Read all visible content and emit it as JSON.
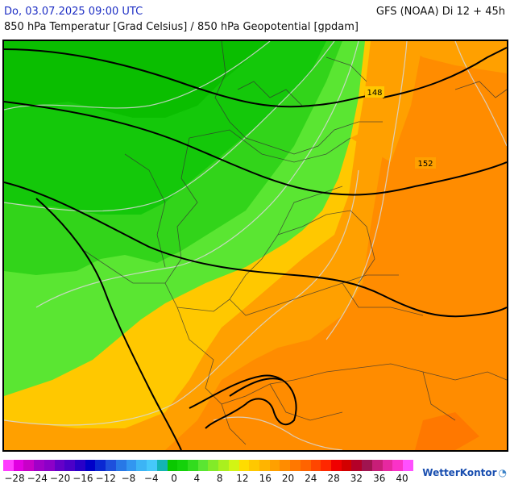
{
  "header": {
    "date": "Do, 03.07.2025 09:00 UTC",
    "model": "GFS (NOAA) Di 12 + 45h",
    "parameter": "850 hPa Temperatur [Grad Celsius] / 850 hPa Geopotential [gpdam]"
  },
  "map": {
    "contour_labels": [
      "148",
      "152"
    ]
  },
  "legend": {
    "colors": [
      "#ff3cff",
      "#e100e1",
      "#c800c8",
      "#a000c8",
      "#8c00c8",
      "#6400c8",
      "#4b00c8",
      "#2800c8",
      "#0000c8",
      "#0a28d2",
      "#1e50dc",
      "#2878e6",
      "#3296f0",
      "#3cb4f5",
      "#46c8fa",
      "#14b4b4",
      "#0ac800",
      "#14d20a",
      "#32dc1e",
      "#5ae632",
      "#82eb28",
      "#aaf01e",
      "#d2f514",
      "#ffdc00",
      "#ffc800",
      "#ffb400",
      "#ffa000",
      "#ff8c00",
      "#ff7800",
      "#ff6400",
      "#ff4600",
      "#ff2800",
      "#f00000",
      "#d20000",
      "#b40028",
      "#a01450",
      "#c81e78",
      "#e628a0",
      "#fa32c8",
      "#ff50ff"
    ],
    "labels": [
      "−28",
      "−24",
      "−20",
      "−16",
      "−12",
      "−8",
      "−4",
      "0",
      "4",
      "8",
      "12",
      "16",
      "20",
      "24",
      "28",
      "32",
      "36",
      "40"
    ]
  },
  "logo": {
    "text": "WetterKontor",
    "icon": "wetterkontor-logo-icon"
  }
}
